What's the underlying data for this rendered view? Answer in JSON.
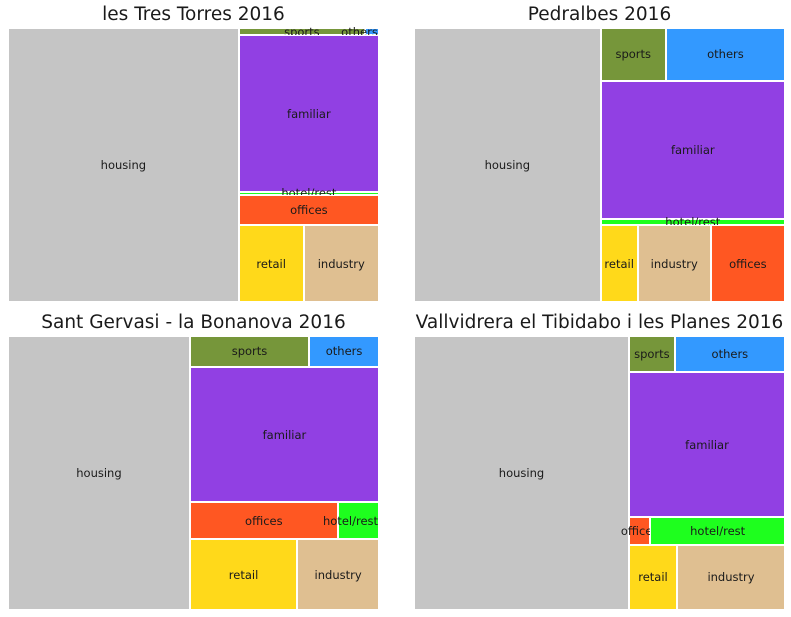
{
  "colors": {
    "housing": "#c5c5c5",
    "familiar": "#9140e3",
    "sports": "#76963a",
    "others": "#3399ff",
    "hotel/rest": "#1eff1e",
    "offices": "#ff5722",
    "retail": "#ffd91a",
    "industry": "#dfbf91"
  },
  "chart_data": [
    {
      "type": "treemap",
      "title": "les Tres Torres 2016",
      "items": [
        {
          "label": "housing",
          "value": 62.2
        },
        {
          "label": "sports",
          "value": 0.9
        },
        {
          "label": "others",
          "value": 0.1
        },
        {
          "label": "familiar",
          "value": 21.6
        },
        {
          "label": "hotel/rest",
          "value": 0.4
        },
        {
          "label": "offices",
          "value": 4.2
        },
        {
          "label": "retail",
          "value": 4.9
        },
        {
          "label": "industry",
          "value": 5.7
        }
      ]
    },
    {
      "type": "treemap",
      "title": "Pedralbes 2016",
      "items": [
        {
          "label": "housing",
          "value": 50.3
        },
        {
          "label": "sports",
          "value": 3.4
        },
        {
          "label": "others",
          "value": 6.2
        },
        {
          "label": "familiar",
          "value": 25.0
        },
        {
          "label": "hotel/rest",
          "value": 1.2
        },
        {
          "label": "retail",
          "value": 2.8
        },
        {
          "label": "industry",
          "value": 5.5
        },
        {
          "label": "offices",
          "value": 5.6
        }
      ]
    },
    {
      "type": "treemap",
      "title": "Sant Gervasi - la Bonanova 2016",
      "items": [
        {
          "label": "housing",
          "value": 55.3
        },
        {
          "label": "sports",
          "value": 4.1
        },
        {
          "label": "others",
          "value": 2.4
        },
        {
          "label": "familiar",
          "value": 28.4
        },
        {
          "label": "offices",
          "value": 6.1
        },
        {
          "label": "hotel/rest",
          "value": 1.7
        },
        {
          "label": "retail",
          "value": 8.4
        },
        {
          "label": "industry",
          "value": 6.4
        }
      ]
    },
    {
      "type": "treemap",
      "title": "Vallvidrera el Tibidabo i les Planes 2016",
      "items": [
        {
          "label": "housing",
          "value": 60.1
        },
        {
          "label": "sports",
          "value": 1.7
        },
        {
          "label": "others",
          "value": 4.1
        },
        {
          "label": "familiar",
          "value": 23.0
        },
        {
          "label": "offices",
          "value": 0.6
        },
        {
          "label": "hotel/rest",
          "value": 3.8
        },
        {
          "label": "retail",
          "value": 3.2
        },
        {
          "label": "industry",
          "value": 7.2
        }
      ]
    }
  ]
}
